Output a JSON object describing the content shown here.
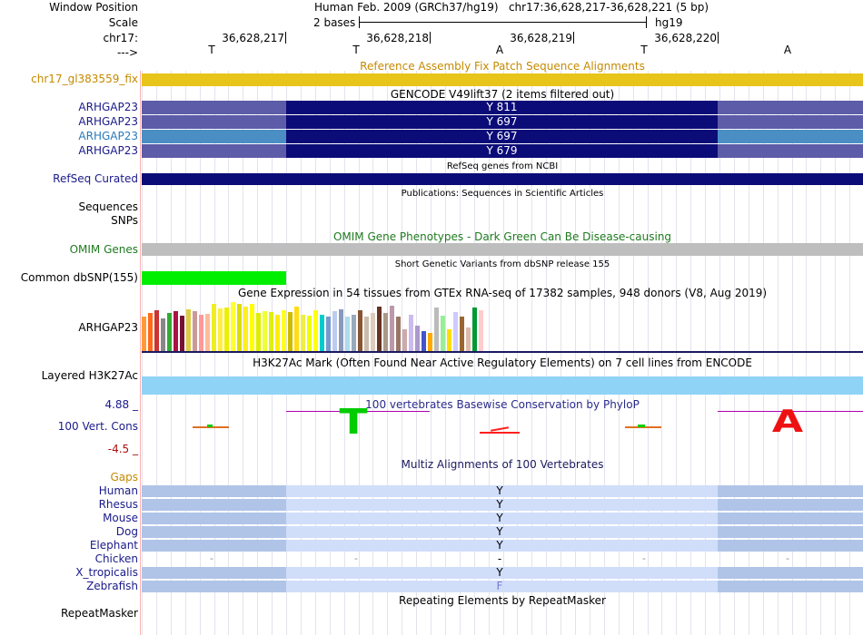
{
  "labels": {
    "window_position": "Window Position",
    "scale": "Scale",
    "chrom": "chr17:",
    "strand": "--->",
    "fix_patch": "chr17_gl383559_fix",
    "gencode": [
      "ARHGAP23",
      "ARHGAP23",
      "ARHGAP23",
      "ARHGAP23"
    ],
    "refseq": "RefSeq Curated",
    "sequences": "Sequences",
    "snps": "SNPs",
    "omim": "OMIM Genes",
    "dbsnp": "Common dbSNP(155)",
    "gtex_gene": "ARHGAP23",
    "h3k27ac": "Layered H3K27Ac",
    "cons_max": "4.88 _",
    "cons": "100 Vert. Cons",
    "cons_min": "-4.5 _",
    "gaps": "Gaps",
    "species": [
      "Human",
      "Rhesus",
      "Mouse",
      "Dog",
      "Elephant",
      "Chicken",
      "X_tropicalis",
      "Zebrafish"
    ],
    "repeatmasker": "RepeatMasker"
  },
  "header": {
    "position": "Human Feb. 2009 (GRCh37/hg19)   chr17:36,628,217-36,628,221 (5 bp)",
    "scale_value": "2 bases",
    "assembly": "hg19",
    "ticks": [
      "36,628,217",
      "36,628,218",
      "36,628,219",
      "36,628,220"
    ],
    "bases": [
      "T",
      "T",
      "A",
      "T",
      "A"
    ]
  },
  "track_titles": {
    "fix_patch": "Reference Assembly Fix Patch Sequence Alignments",
    "gencode": "GENCODE V49lift37 (2 items filtered out)",
    "refseq": "RefSeq genes from NCBI",
    "publications": "Publications: Sequences in Scientific Articles",
    "omim": "OMIM Gene Phenotypes - Dark Green Can Be Disease-causing",
    "dbsnp": "Short Genetic Variants from dbSNP release 155",
    "gtex": "Gene Expression in 54 tissues from GTEx RNA-seq of 17382 samples, 948 donors (V8, Aug 2019)",
    "h3k27ac": "H3K27Ac Mark (Often Found Near Active Regulatory Elements) on 7 cell lines from ENCODE",
    "phylop": "100 vertebrates Basewise Conservation by PhyloP",
    "multiz": "Multiz Alignments of 100 Vertebrates",
    "repeatmasker": "Repeating Elements by RepeatMasker"
  },
  "gencode_items": [
    {
      "aa": "Y 811",
      "color": "#5c5ca8"
    },
    {
      "aa": "Y 697",
      "color": "#5c5ca8"
    },
    {
      "aa": "Y 697",
      "color": "#4a8ec4"
    },
    {
      "aa": "Y 679",
      "color": "#5c5ca8"
    }
  ],
  "conservation_letters": [
    "T",
    "A"
  ],
  "multiz_letters": [
    "Y",
    "Y",
    "Y",
    "Y",
    "Y",
    "-",
    "Y",
    "F"
  ],
  "gap_dash": "-",
  "colors": {
    "fix_patch": "#e8c51a",
    "coding": "#0c0c78",
    "refseq": "#0c0c78",
    "omim": "#bebebe",
    "dbsnp": "#00ee00",
    "h3k27ac": "#8fd3f7",
    "multiz_dark": "#b0c4e8",
    "multiz_light": "#d0defa",
    "conservation_line": "#b000b0",
    "label_blue": "#1a1a8a",
    "label_green": "#1f7a1f",
    "label_orange": "#c48a00"
  },
  "gtex_colors": [
    "#ff9a3a",
    "#ff6a1a",
    "#cc3333",
    "#888888",
    "#33aa33",
    "#aa1144",
    "#771133",
    "#ddcc44",
    "#cc9999",
    "#ff9999",
    "#ffbb99",
    "#eeee22",
    "#ffee44",
    "#eeee00",
    "#ffff33",
    "#dddd00",
    "#ffee22",
    "#ffff00",
    "#ddee00",
    "#eeff33",
    "#ddee11",
    "#ffee00",
    "#ffff22",
    "#ccbb00",
    "#ffdd11",
    "#eeee44",
    "#eeff00",
    "#ffff11",
    "#00cccc",
    "#7799cc",
    "#bbccee",
    "#8899bb",
    "#aaddee",
    "#99aabb",
    "#885533",
    "#ccbbaa",
    "#ddccbb",
    "#663322",
    "#aa9988",
    "#bb99aa",
    "#997766",
    "#ccaaaa",
    "#ccbbee",
    "#aa99cc",
    "#4455cc",
    "#ffaa00",
    "#bbbbbb",
    "#99ee99",
    "#ffdd00",
    "#ccccff",
    "#996633",
    "#ddbbaa",
    "#009933",
    "#ffcccc"
  ],
  "gtex_values": [
    38,
    42,
    45,
    36,
    42,
    44,
    39,
    46,
    44,
    40,
    41,
    52,
    47,
    48,
    54,
    52,
    49,
    52,
    42,
    44,
    43,
    40,
    45,
    43,
    49,
    40,
    39,
    45,
    40,
    38,
    44,
    46,
    38,
    40,
    45,
    38,
    42,
    49,
    42,
    50,
    38,
    24,
    40,
    28,
    22,
    20,
    48,
    39,
    24,
    43,
    38,
    26,
    48,
    45
  ]
}
